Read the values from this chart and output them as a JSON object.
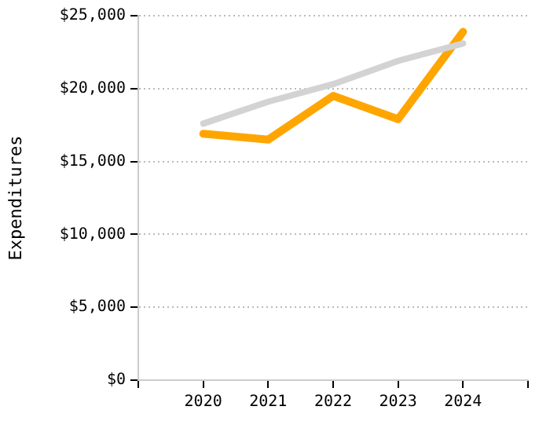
{
  "chart_data": {
    "type": "line",
    "ylabel": "Expenditures",
    "x": [
      2020,
      2021,
      2022,
      2023,
      2024
    ],
    "series": [
      {
        "color": "#d3d3d3",
        "values": [
          17600,
          19100,
          20300,
          21900,
          23100
        ]
      },
      {
        "color": "#ffa500",
        "values": [
          16900,
          16500,
          19500,
          17900,
          23900
        ]
      }
    ],
    "xlim": [
      2019,
      2025
    ],
    "xticks": [
      {
        "value": 2019,
        "label": null
      },
      2020,
      2021,
      2022,
      2023,
      2024,
      {
        "value": 2025,
        "label": null
      }
    ],
    "ylim": [
      0,
      25000
    ],
    "yticks": [
      {
        "value": 0,
        "label": "$0"
      },
      {
        "value": 5000,
        "label": "$5,000"
      },
      {
        "value": 10000,
        "label": "$10,000"
      },
      {
        "value": 15000,
        "label": "$15,000"
      },
      {
        "value": 20000,
        "label": "$20,000"
      },
      {
        "value": 25000,
        "label": "$25,000"
      }
    ],
    "grid": "y",
    "legend": false,
    "marker": "none",
    "line_style": "solid"
  }
}
